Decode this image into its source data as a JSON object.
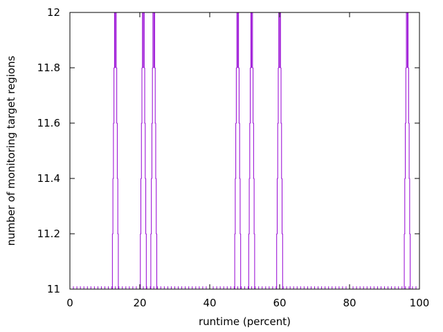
{
  "chart_data": {
    "type": "line",
    "xlabel": "runtime (percent)",
    "ylabel": "number of monitoring target regions",
    "xlim": [
      0,
      100
    ],
    "ylim": [
      11,
      12
    ],
    "x_ticks": [
      0,
      20,
      40,
      60,
      80,
      100
    ],
    "y_ticks": [
      11,
      11.2,
      11.4,
      11.6,
      11.8,
      12
    ],
    "x_tick_labels": [
      "0",
      "20",
      "40",
      "60",
      "80",
      "100"
    ],
    "y_tick_labels": [
      "11",
      "11.2",
      "11.4",
      "11.6",
      "11.8",
      "12"
    ],
    "grid": false,
    "legend": "none",
    "series": [
      {
        "color": "#9400d3",
        "description": "baseline value 11 with sampled points every ~1 percent; brief spikes to 12",
        "baseline": 11,
        "sample_step": 1,
        "spikes": [
          {
            "x": 13.0,
            "peak": 12
          },
          {
            "x": 21.0,
            "peak": 12
          },
          {
            "x": 24.0,
            "peak": 12
          },
          {
            "x": 48.0,
            "peak": 12
          },
          {
            "x": 52.0,
            "peak": 12
          },
          {
            "x": 60.0,
            "peak": 12
          },
          {
            "x": 96.5,
            "peak": 12
          }
        ]
      }
    ]
  }
}
